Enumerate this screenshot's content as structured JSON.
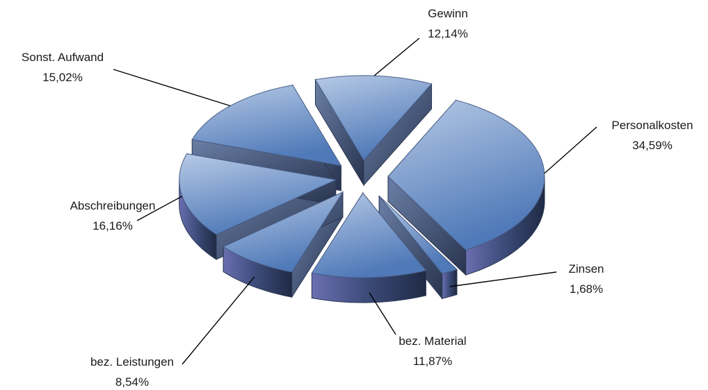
{
  "chart_data": {
    "type": "pie",
    "style": "3d-exploded",
    "categories": [
      "Gewinn",
      "Personalkosten",
      "Zinsen",
      "bez. Material",
      "bez. Leistungen",
      "Abschreibungen",
      "Sonst. Aufwand"
    ],
    "values": [
      12.14,
      34.59,
      1.68,
      11.87,
      8.54,
      16.16,
      15.02
    ],
    "value_labels": [
      "12,14%",
      "34,59%",
      "1,68%",
      "11,87%",
      "8,54%",
      "16,16%",
      "15,02%"
    ],
    "title": "",
    "legend": "none",
    "colors": {
      "top_light": "#b7cae6",
      "top_dark": "#4f79b8",
      "side_light": "#5c6f98",
      "side_dark": "#1f2a44",
      "outline": "#4a5f88"
    }
  }
}
